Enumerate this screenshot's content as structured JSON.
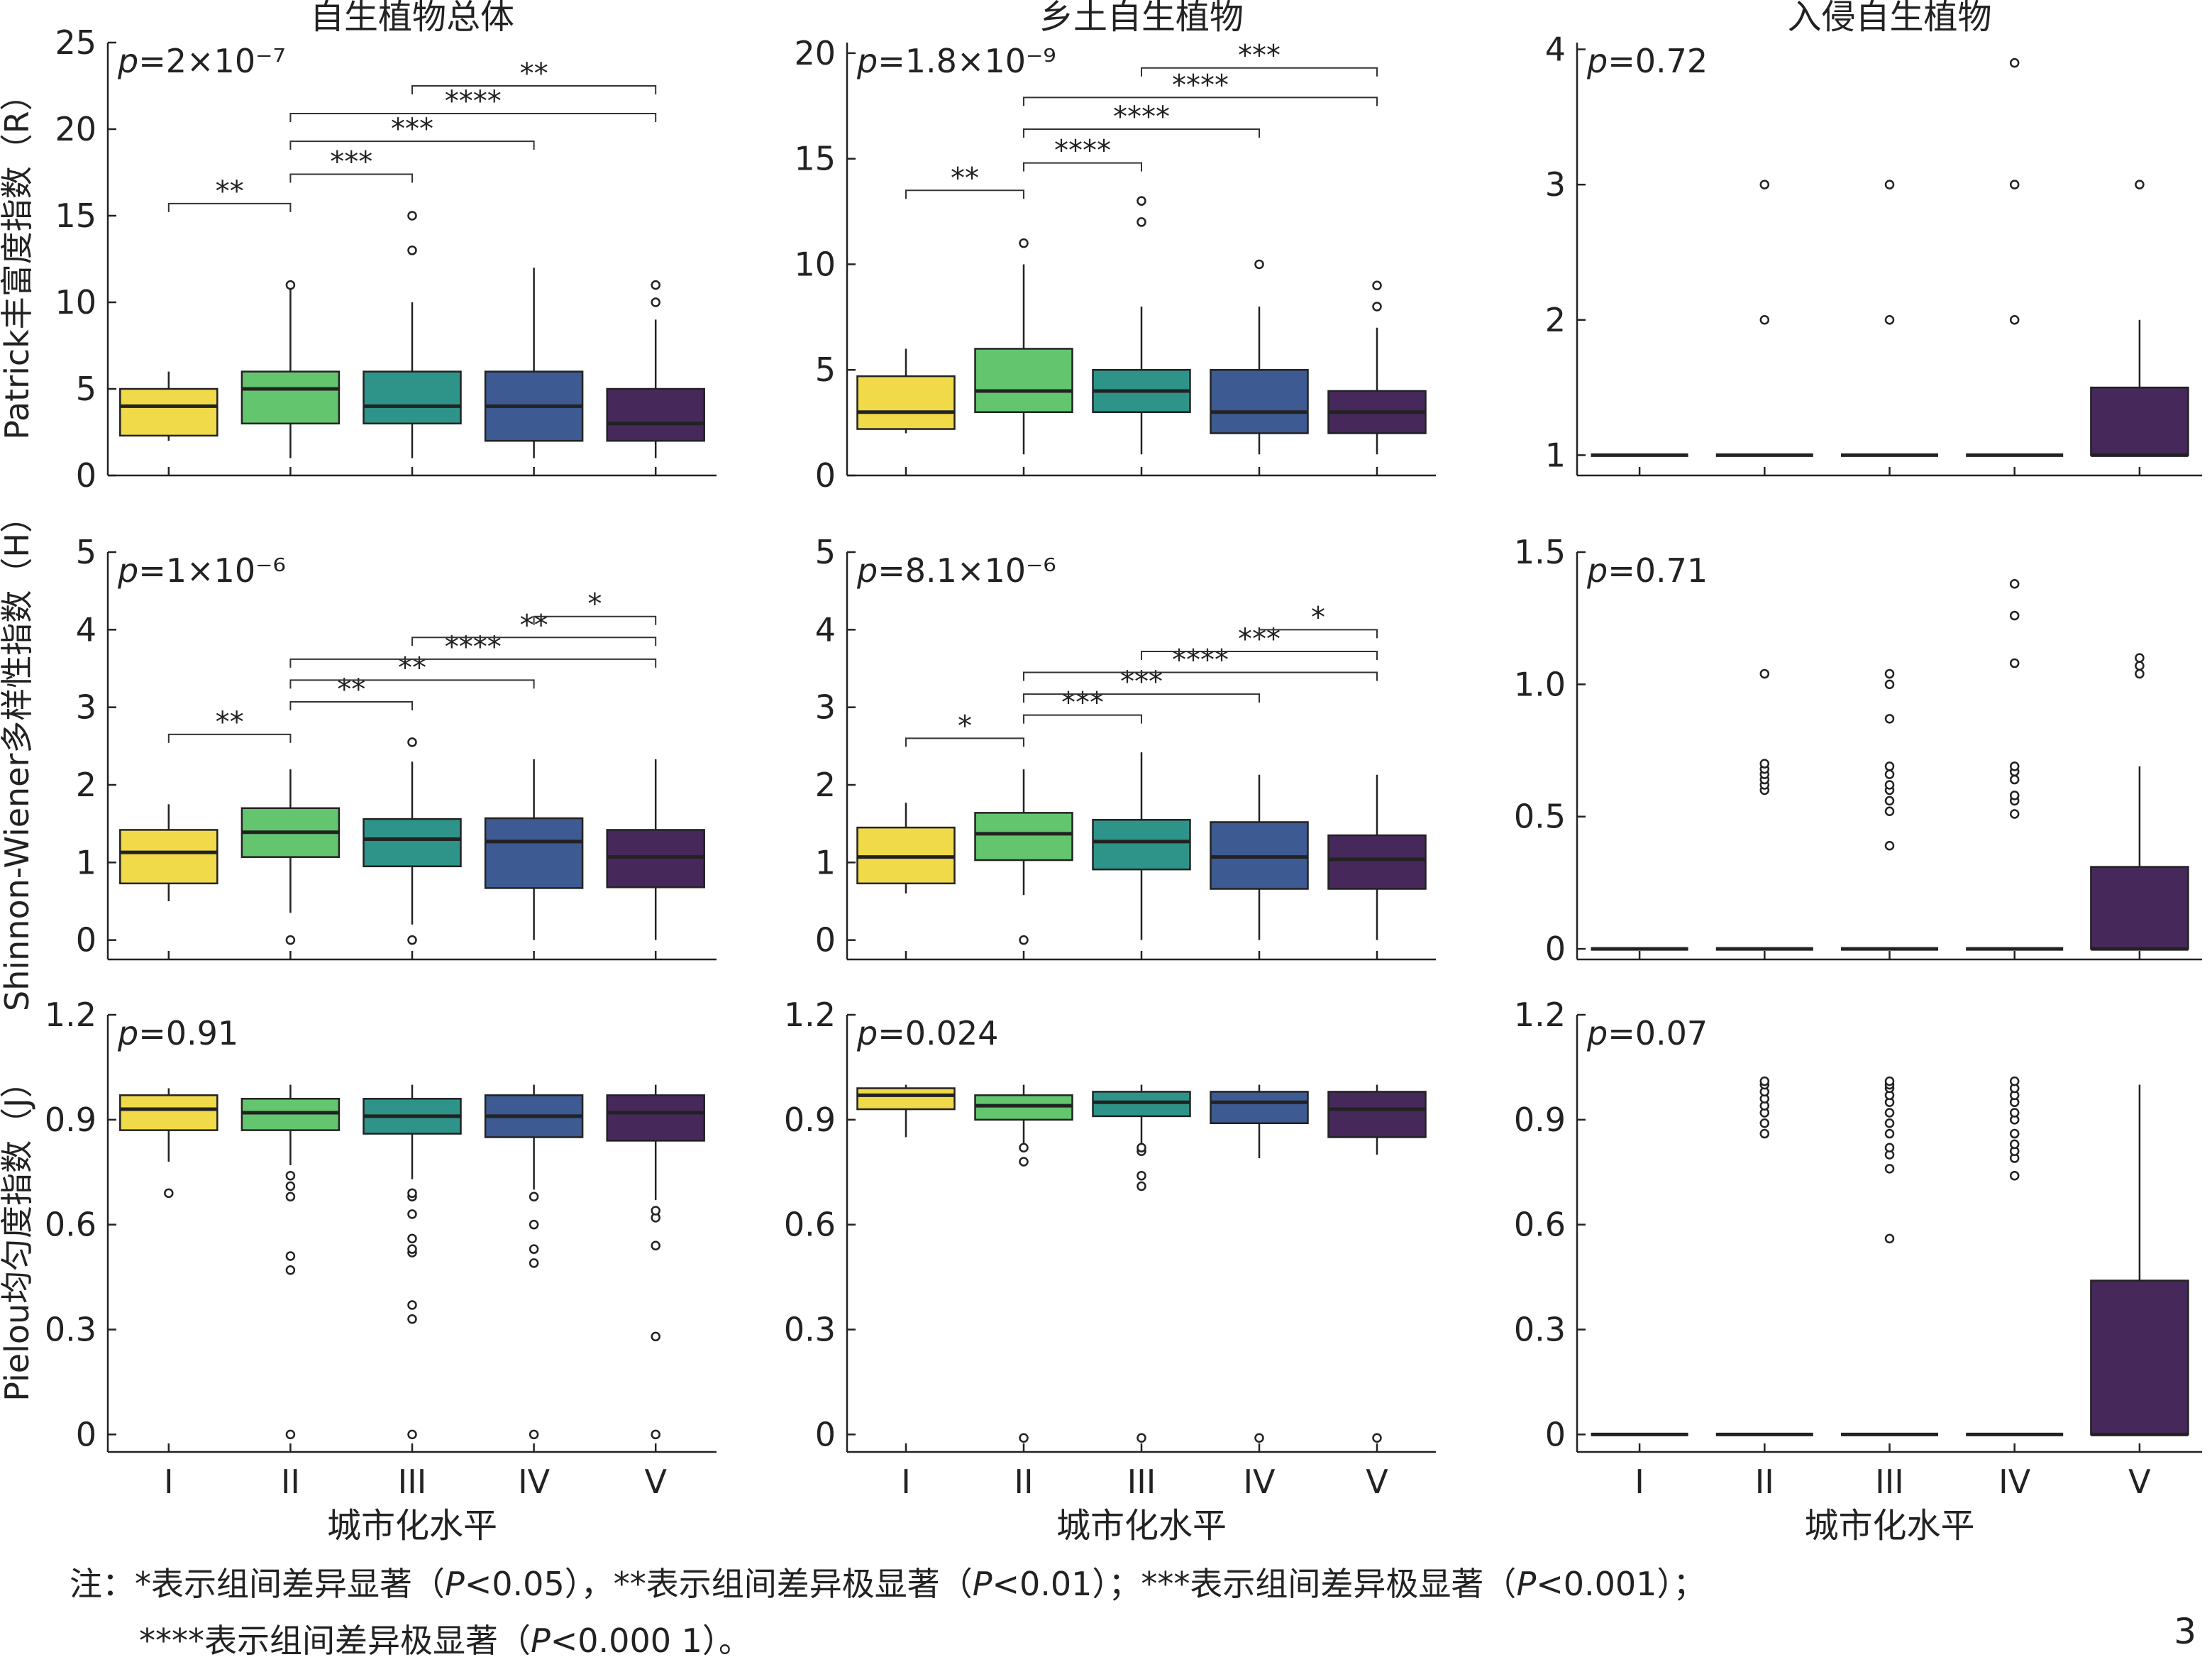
{
  "page_number": "3",
  "note": {
    "line1_prefix": "注：*表示组间差异显著（",
    "line1_p1": "P",
    "line1_mid1": "<0.05），**表示组间差异极显著（",
    "line1_p2": "P",
    "line1_mid2": "<0.01）；***表示组间差异极显著（",
    "line1_p3": "P",
    "line1_end": "<0.001）；",
    "line2_prefix": "****表示组间差异极显著（",
    "line2_p": "P",
    "line2_end": "<0.000 1）。"
  },
  "colors": [
    "#F1DA4A",
    "#64C56F",
    "#2E9489",
    "#3D5A92",
    "#46295A"
  ],
  "chart_data": {
    "type": "box",
    "categories": [
      "I",
      "II",
      "III",
      "IV",
      "V"
    ],
    "xlabel": "城市化水平",
    "column_titles": [
      "自生植物总体",
      "乡土自生植物",
      "入侵自生植物"
    ],
    "row_ylabels": [
      "Patrick丰富度指数（R）",
      "Shinnon-Wiener多样性指数（H）",
      "Pielou均匀度指数（J）"
    ],
    "panels": [
      {
        "p_label": "p=2×10⁻⁷",
        "ylim": [
          0,
          25
        ],
        "yticks": [
          "0",
          "5",
          "10",
          "15",
          "20",
          "25"
        ],
        "ytick_values": [
          0,
          5,
          10,
          15,
          20,
          25
        ],
        "boxes": [
          {
            "q1": 2.3,
            "median": 4,
            "q3": 5,
            "whislo": 2,
            "whishi": 6,
            "fliers": []
          },
          {
            "q1": 3,
            "median": 5,
            "q3": 6,
            "whislo": 1,
            "whishi": 11,
            "fliers": [
              11
            ]
          },
          {
            "q1": 3,
            "median": 4,
            "q3": 6,
            "whislo": 1,
            "whishi": 10,
            "fliers": [
              13,
              15
            ]
          },
          {
            "q1": 2,
            "median": 4,
            "q3": 6,
            "whislo": 1,
            "whishi": 12,
            "fliers": []
          },
          {
            "q1": 2,
            "median": 3,
            "q3": 5,
            "whislo": 1,
            "whishi": 9,
            "fliers": [
              10,
              11
            ]
          }
        ],
        "brackets": [
          {
            "from": 0,
            "to": 1,
            "y": 15.7,
            "label": "**"
          },
          {
            "from": 1,
            "to": 2,
            "y": 17.4,
            "label": "***"
          },
          {
            "from": 1,
            "to": 3,
            "y": 19.3,
            "label": "***"
          },
          {
            "from": 1,
            "to": 4,
            "y": 20.9,
            "label": "****"
          },
          {
            "from": 2,
            "to": 4,
            "y": 22.5,
            "label": "**"
          }
        ]
      },
      {
        "p_label": "p=1.8×10⁻⁹",
        "ylim": [
          0,
          20.5
        ],
        "yticks": [
          "0",
          "5",
          "10",
          "15",
          "20"
        ],
        "ytick_values": [
          0,
          5,
          10,
          15,
          20
        ],
        "boxes": [
          {
            "q1": 2.2,
            "median": 3,
            "q3": 4.7,
            "whislo": 2,
            "whishi": 6,
            "fliers": []
          },
          {
            "q1": 3,
            "median": 4,
            "q3": 6,
            "whislo": 1,
            "whishi": 10,
            "fliers": [
              11
            ]
          },
          {
            "q1": 3,
            "median": 4,
            "q3": 5,
            "whislo": 1,
            "whishi": 8,
            "fliers": [
              12,
              13
            ]
          },
          {
            "q1": 2,
            "median": 3,
            "q3": 5,
            "whislo": 1,
            "whishi": 8,
            "fliers": [
              10
            ]
          },
          {
            "q1": 2,
            "median": 3,
            "q3": 4,
            "whislo": 1,
            "whishi": 7,
            "fliers": [
              8,
              9
            ]
          }
        ],
        "brackets": [
          {
            "from": 0,
            "to": 1,
            "y": 13.5,
            "label": "**"
          },
          {
            "from": 1,
            "to": 2,
            "y": 14.8,
            "label": "****"
          },
          {
            "from": 1,
            "to": 3,
            "y": 16.4,
            "label": "****"
          },
          {
            "from": 1,
            "to": 4,
            "y": 17.9,
            "label": "****"
          },
          {
            "from": 2,
            "to": 4,
            "y": 19.3,
            "label": "***"
          }
        ]
      },
      {
        "p_label": "p=0.72",
        "ylim": [
          0.85,
          4.05
        ],
        "yticks": [
          "1",
          "2",
          "3",
          "4"
        ],
        "ytick_values": [
          1,
          2,
          3,
          4
        ],
        "boxes": [
          {
            "q1": 1,
            "median": 1,
            "q3": 1,
            "whislo": 1,
            "whishi": 1,
            "fliers": []
          },
          {
            "q1": 1,
            "median": 1,
            "q3": 1,
            "whislo": 1,
            "whishi": 1,
            "fliers": [
              2,
              3
            ]
          },
          {
            "q1": 1,
            "median": 1,
            "q3": 1,
            "whislo": 1,
            "whishi": 1,
            "fliers": [
              2,
              3
            ]
          },
          {
            "q1": 1,
            "median": 1,
            "q3": 1,
            "whislo": 1,
            "whishi": 1,
            "fliers": [
              2,
              3,
              3.9
            ]
          },
          {
            "q1": 1,
            "median": 1,
            "q3": 1.5,
            "whislo": 1,
            "whishi": 2,
            "fliers": [
              3
            ]
          }
        ],
        "brackets": []
      },
      {
        "p_label": "p=1×10⁻⁶",
        "ylim": [
          -0.25,
          5
        ],
        "yticks": [
          "0",
          "1",
          "2",
          "3",
          "4",
          "5"
        ],
        "ytick_values": [
          0,
          1,
          2,
          3,
          4,
          5
        ],
        "boxes": [
          {
            "q1": 0.73,
            "median": 1.13,
            "q3": 1.42,
            "whislo": 0.5,
            "whishi": 1.75,
            "fliers": []
          },
          {
            "q1": 1.07,
            "median": 1.39,
            "q3": 1.7,
            "whislo": 0.35,
            "whishi": 2.2,
            "fliers": [
              0
            ]
          },
          {
            "q1": 0.95,
            "median": 1.3,
            "q3": 1.56,
            "whislo": 0.2,
            "whishi": 2.3,
            "fliers": [
              0,
              2.55
            ]
          },
          {
            "q1": 0.67,
            "median": 1.27,
            "q3": 1.57,
            "whislo": 0,
            "whishi": 2.33,
            "fliers": []
          },
          {
            "q1": 0.68,
            "median": 1.07,
            "q3": 1.42,
            "whislo": 0,
            "whishi": 2.33,
            "fliers": []
          }
        ],
        "brackets": [
          {
            "from": 0,
            "to": 1,
            "y": 2.65,
            "label": "**"
          },
          {
            "from": 1,
            "to": 2,
            "y": 3.07,
            "label": "**"
          },
          {
            "from": 1,
            "to": 3,
            "y": 3.35,
            "label": "**"
          },
          {
            "from": 1,
            "to": 4,
            "y": 3.62,
            "label": "****"
          },
          {
            "from": 2,
            "to": 4,
            "y": 3.9,
            "label": "**"
          },
          {
            "from": 3,
            "to": 4,
            "y": 4.17,
            "label": "*"
          }
        ]
      },
      {
        "p_label": "p=8.1×10⁻⁶",
        "ylim": [
          -0.25,
          5
        ],
        "yticks": [
          "0",
          "1",
          "2",
          "3",
          "4",
          "5"
        ],
        "ytick_values": [
          0,
          1,
          2,
          3,
          4,
          5
        ],
        "boxes": [
          {
            "q1": 0.73,
            "median": 1.07,
            "q3": 1.45,
            "whislo": 0.6,
            "whishi": 1.77,
            "fliers": []
          },
          {
            "q1": 1.03,
            "median": 1.37,
            "q3": 1.64,
            "whislo": 0.58,
            "whishi": 2.2,
            "fliers": [
              0
            ]
          },
          {
            "q1": 0.91,
            "median": 1.27,
            "q3": 1.55,
            "whislo": 0,
            "whishi": 2.42,
            "fliers": []
          },
          {
            "q1": 0.66,
            "median": 1.07,
            "q3": 1.52,
            "whislo": 0,
            "whishi": 2.13,
            "fliers": []
          },
          {
            "q1": 0.66,
            "median": 1.04,
            "q3": 1.35,
            "whislo": 0,
            "whishi": 2.13,
            "fliers": []
          }
        ],
        "brackets": [
          {
            "from": 0,
            "to": 1,
            "y": 2.6,
            "label": "*"
          },
          {
            "from": 1,
            "to": 2,
            "y": 2.9,
            "label": "***"
          },
          {
            "from": 1,
            "to": 3,
            "y": 3.17,
            "label": "***"
          },
          {
            "from": 1,
            "to": 4,
            "y": 3.45,
            "label": "****"
          },
          {
            "from": 2,
            "to": 4,
            "y": 3.72,
            "label": "***"
          },
          {
            "from": 3,
            "to": 4,
            "y": 4.0,
            "label": "*"
          }
        ]
      },
      {
        "p_label": "p=0.71",
        "ylim": [
          -0.04,
          1.5
        ],
        "yticks": [
          "0",
          "0.5",
          "1.0",
          "1.5"
        ],
        "ytick_values": [
          0,
          0.5,
          1.0,
          1.5
        ],
        "boxes": [
          {
            "q1": 0,
            "median": 0,
            "q3": 0,
            "whislo": 0,
            "whishi": 0,
            "fliers": []
          },
          {
            "q1": 0,
            "median": 0,
            "q3": 0,
            "whislo": 0,
            "whishi": 0,
            "fliers": [
              0.6,
              0.62,
              0.64,
              0.66,
              0.68,
              0.7,
              1.04
            ]
          },
          {
            "q1": 0,
            "median": 0,
            "q3": 0,
            "whislo": 0,
            "whishi": 0,
            "fliers": [
              0.39,
              0.52,
              0.56,
              0.6,
              0.62,
              0.66,
              0.69,
              0.87,
              1.0,
              1.04
            ]
          },
          {
            "q1": 0,
            "median": 0,
            "q3": 0,
            "whislo": 0,
            "whishi": 0,
            "fliers": [
              0.51,
              0.56,
              0.58,
              0.64,
              0.67,
              0.69,
              1.08,
              1.26,
              1.38
            ]
          },
          {
            "q1": 0,
            "median": 0,
            "q3": 0.31,
            "whislo": 0,
            "whishi": 0.69,
            "fliers": [
              1.04,
              1.07,
              1.1
            ]
          }
        ],
        "brackets": []
      },
      {
        "p_label": "p=0.91",
        "ylim": [
          -0.05,
          1.2
        ],
        "yticks": [
          "0",
          "0.3",
          "0.6",
          "0.9",
          "1.2"
        ],
        "ytick_values": [
          0,
          0.3,
          0.6,
          0.9,
          1.2
        ],
        "boxes": [
          {
            "q1": 0.87,
            "median": 0.93,
            "q3": 0.97,
            "whislo": 0.78,
            "whishi": 0.99,
            "fliers": [
              0.69
            ]
          },
          {
            "q1": 0.87,
            "median": 0.92,
            "q3": 0.96,
            "whislo": 0.77,
            "whishi": 1.0,
            "fliers": [
              0,
              0.47,
              0.51,
              0.68,
              0.71,
              0.74
            ]
          },
          {
            "q1": 0.86,
            "median": 0.91,
            "q3": 0.96,
            "whislo": 0.73,
            "whishi": 1.0,
            "fliers": [
              0,
              0.33,
              0.37,
              0.52,
              0.53,
              0.56,
              0.63,
              0.68,
              0.69
            ]
          },
          {
            "q1": 0.85,
            "median": 0.91,
            "q3": 0.97,
            "whislo": 0.7,
            "whishi": 1.0,
            "fliers": [
              0,
              0.49,
              0.53,
              0.6,
              0.68
            ]
          },
          {
            "q1": 0.84,
            "median": 0.92,
            "q3": 0.97,
            "whislo": 0.67,
            "whishi": 1.0,
            "fliers": [
              0,
              0.28,
              0.54,
              0.62,
              0.64
            ]
          }
        ],
        "brackets": []
      },
      {
        "p_label": "p=0.024",
        "ylim": [
          -0.05,
          1.2
        ],
        "yticks": [
          "0",
          "0.3",
          "0.6",
          "0.9",
          "1.2"
        ],
        "ytick_values": [
          0,
          0.3,
          0.6,
          0.9,
          1.2
        ],
        "boxes": [
          {
            "q1": 0.93,
            "median": 0.97,
            "q3": 0.99,
            "whislo": 0.85,
            "whishi": 1.0,
            "fliers": []
          },
          {
            "q1": 0.9,
            "median": 0.94,
            "q3": 0.97,
            "whislo": 0.83,
            "whishi": 1.0,
            "fliers": [
              -0.01,
              0.78,
              0.82
            ]
          },
          {
            "q1": 0.91,
            "median": 0.95,
            "q3": 0.98,
            "whislo": 0.83,
            "whishi": 1.0,
            "fliers": [
              -0.01,
              0.71,
              0.74,
              0.81,
              0.82
            ]
          },
          {
            "q1": 0.89,
            "median": 0.95,
            "q3": 0.98,
            "whislo": 0.79,
            "whishi": 1.0,
            "fliers": [
              -0.01
            ]
          },
          {
            "q1": 0.85,
            "median": 0.93,
            "q3": 0.98,
            "whislo": 0.8,
            "whishi": 1.0,
            "fliers": [
              -0.01
            ]
          }
        ],
        "brackets": []
      },
      {
        "p_label": "p=0.07",
        "ylim": [
          -0.05,
          1.2
        ],
        "yticks": [
          "0",
          "0.3",
          "0.6",
          "0.9",
          "1.2"
        ],
        "ytick_values": [
          0,
          0.3,
          0.6,
          0.9,
          1.2
        ],
        "boxes": [
          {
            "q1": 0,
            "median": 0,
            "q3": 0,
            "whislo": 0,
            "whishi": 0,
            "fliers": []
          },
          {
            "q1": 0,
            "median": 0,
            "q3": 0,
            "whislo": 0,
            "whishi": 0,
            "fliers": [
              0.86,
              0.89,
              0.92,
              0.94,
              0.96,
              0.98,
              1.0,
              1.01
            ]
          },
          {
            "q1": 0,
            "median": 0,
            "q3": 0,
            "whislo": 0,
            "whishi": 0,
            "fliers": [
              0.56,
              0.76,
              0.8,
              0.82,
              0.86,
              0.89,
              0.92,
              0.95,
              0.97,
              0.99,
              1.0,
              1.01
            ]
          },
          {
            "q1": 0,
            "median": 0,
            "q3": 0,
            "whislo": 0,
            "whishi": 0,
            "fliers": [
              0.74,
              0.79,
              0.81,
              0.83,
              0.86,
              0.9,
              0.92,
              0.95,
              0.97,
              0.99,
              1.01
            ]
          },
          {
            "q1": 0,
            "median": 0,
            "q3": 0.44,
            "whislo": 0,
            "whishi": 1.0,
            "fliers": []
          }
        ],
        "brackets": []
      }
    ]
  }
}
